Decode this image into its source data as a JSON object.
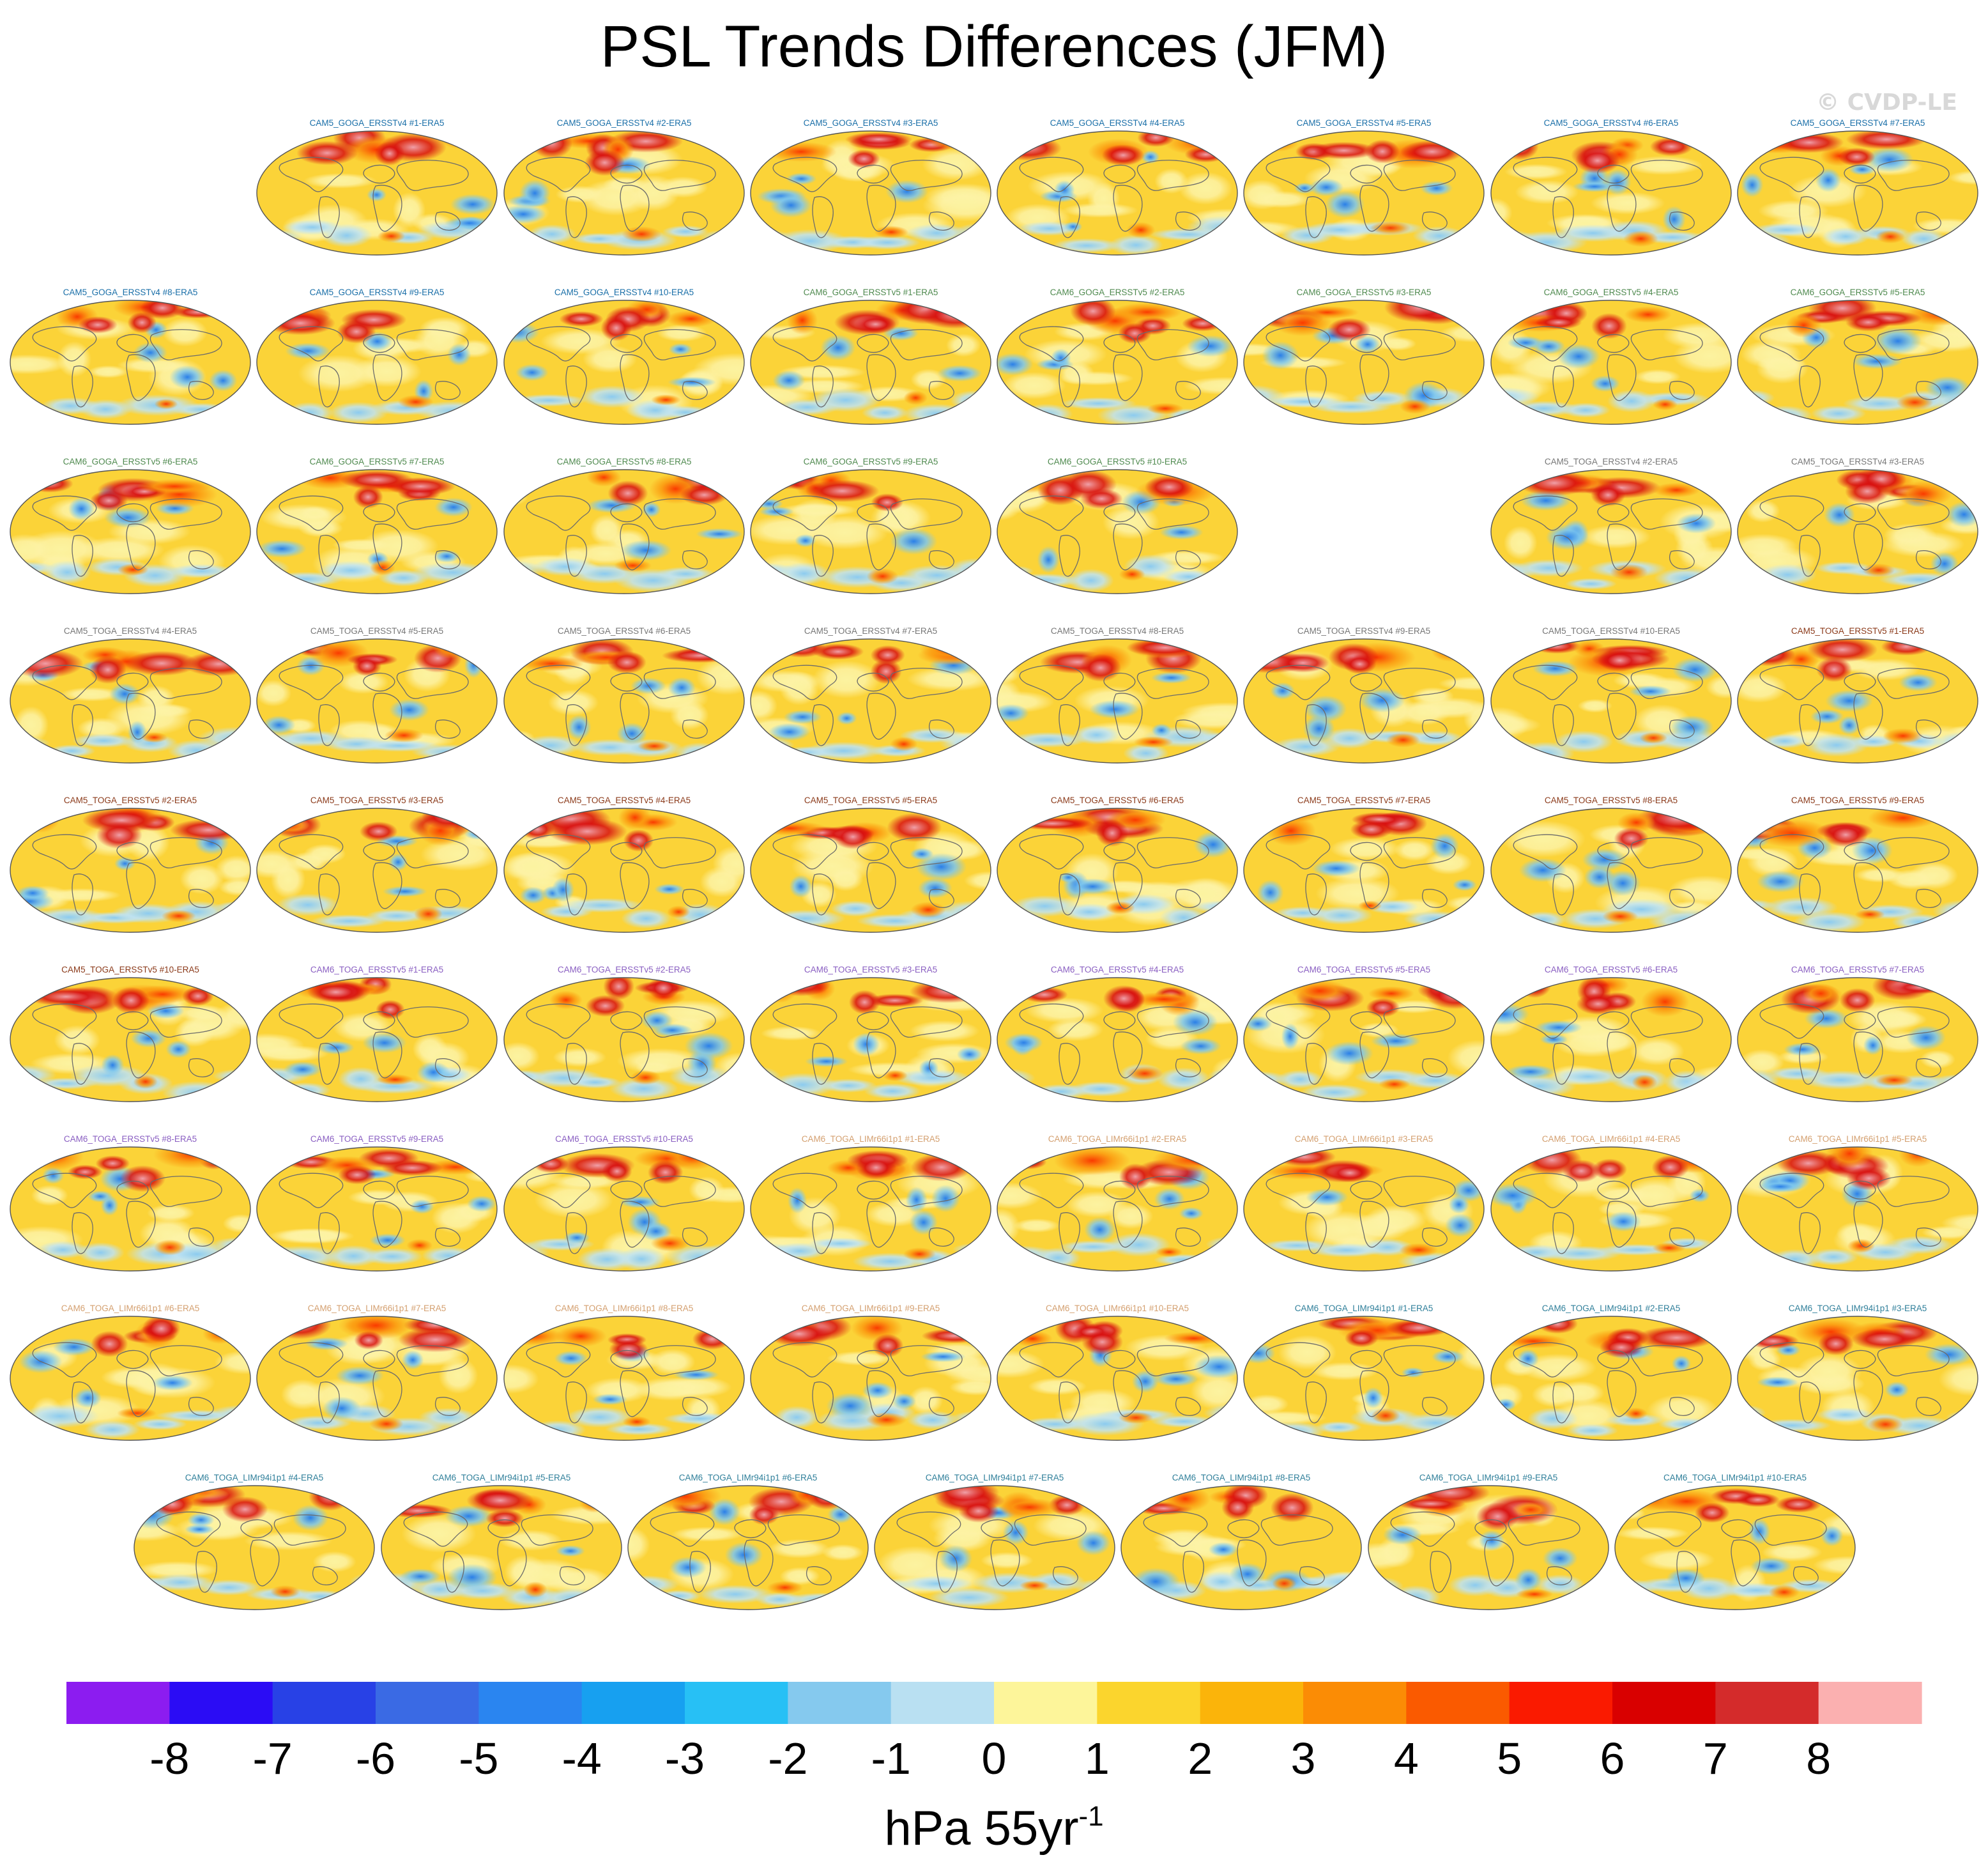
{
  "figure": {
    "title": "PSL Trends Differences (JFM)",
    "watermark": "© CVDP-LE"
  },
  "colors": {
    "group_label_colors": {
      "CAM5_GOGA_ERSSTv4": "#1a6fa8",
      "CAM6_GOGA_ERSSTv5": "#4f8a4f",
      "CAM5_TOGA_ERSSTv4": "#777777",
      "CAM5_TOGA_ERSSTv5": "#8b3a1a",
      "CAM6_TOGA_ERSSTv5": "#8a5fc2",
      "CAM6_TOGA_LIMr66i1p1": "#d4a070",
      "CAM6_TOGA_LIMr94i1p1": "#2f7f9a"
    }
  },
  "chart_data": {
    "type": "heatmap",
    "panel_kind": "global map (Robinson-like projection)",
    "variable": "PSL trend difference",
    "season": "JFM",
    "panels": [
      {
        "label": "CAM5_GOGA_ERSSTv4 #1-ERA5",
        "group": "CAM5_GOGA_ERSSTv4"
      },
      {
        "label": "CAM5_GOGA_ERSSTv4 #2-ERA5",
        "group": "CAM5_GOGA_ERSSTv4"
      },
      {
        "label": "CAM5_GOGA_ERSSTv4 #3-ERA5",
        "group": "CAM5_GOGA_ERSSTv4"
      },
      {
        "label": "CAM5_GOGA_ERSSTv4 #4-ERA5",
        "group": "CAM5_GOGA_ERSSTv4"
      },
      {
        "label": "CAM5_GOGA_ERSSTv4 #5-ERA5",
        "group": "CAM5_GOGA_ERSSTv4"
      },
      {
        "label": "CAM5_GOGA_ERSSTv4 #6-ERA5",
        "group": "CAM5_GOGA_ERSSTv4"
      },
      {
        "label": "CAM5_GOGA_ERSSTv4 #7-ERA5",
        "group": "CAM5_GOGA_ERSSTv4"
      },
      {
        "label": "CAM5_GOGA_ERSSTv4 #8-ERA5",
        "group": "CAM5_GOGA_ERSSTv4"
      },
      {
        "label": "CAM5_GOGA_ERSSTv4 #9-ERA5",
        "group": "CAM5_GOGA_ERSSTv4"
      },
      {
        "label": "CAM5_GOGA_ERSSTv4 #10-ERA5",
        "group": "CAM5_GOGA_ERSSTv4"
      },
      {
        "label": "CAM6_GOGA_ERSSTv5 #1-ERA5",
        "group": "CAM6_GOGA_ERSSTv5"
      },
      {
        "label": "CAM6_GOGA_ERSSTv5 #2-ERA5",
        "group": "CAM6_GOGA_ERSSTv5"
      },
      {
        "label": "CAM6_GOGA_ERSSTv5 #3-ERA5",
        "group": "CAM6_GOGA_ERSSTv5"
      },
      {
        "label": "CAM6_GOGA_ERSSTv5 #4-ERA5",
        "group": "CAM6_GOGA_ERSSTv5"
      },
      {
        "label": "CAM6_GOGA_ERSSTv5 #5-ERA5",
        "group": "CAM6_GOGA_ERSSTv5"
      },
      {
        "label": "CAM6_GOGA_ERSSTv5 #6-ERA5",
        "group": "CAM6_GOGA_ERSSTv5"
      },
      {
        "label": "CAM6_GOGA_ERSSTv5 #7-ERA5",
        "group": "CAM6_GOGA_ERSSTv5"
      },
      {
        "label": "CAM6_GOGA_ERSSTv5 #8-ERA5",
        "group": "CAM6_GOGA_ERSSTv5"
      },
      {
        "label": "CAM6_GOGA_ERSSTv5 #9-ERA5",
        "group": "CAM6_GOGA_ERSSTv5"
      },
      {
        "label": "CAM6_GOGA_ERSSTv5 #10-ERA5",
        "group": "CAM6_GOGA_ERSSTv5"
      },
      {
        "label": "CAM5_TOGA_ERSSTv4 #2-ERA5",
        "group": "CAM5_TOGA_ERSSTv4"
      },
      {
        "label": "CAM5_TOGA_ERSSTv4 #3-ERA5",
        "group": "CAM5_TOGA_ERSSTv4"
      },
      {
        "label": "CAM5_TOGA_ERSSTv4 #4-ERA5",
        "group": "CAM5_TOGA_ERSSTv4"
      },
      {
        "label": "CAM5_TOGA_ERSSTv4 #5-ERA5",
        "group": "CAM5_TOGA_ERSSTv4"
      },
      {
        "label": "CAM5_TOGA_ERSSTv4 #6-ERA5",
        "group": "CAM5_TOGA_ERSSTv4"
      },
      {
        "label": "CAM5_TOGA_ERSSTv4 #7-ERA5",
        "group": "CAM5_TOGA_ERSSTv4"
      },
      {
        "label": "CAM5_TOGA_ERSSTv4 #8-ERA5",
        "group": "CAM5_TOGA_ERSSTv4"
      },
      {
        "label": "CAM5_TOGA_ERSSTv4 #9-ERA5",
        "group": "CAM5_TOGA_ERSSTv4"
      },
      {
        "label": "CAM5_TOGA_ERSSTv4 #10-ERA5",
        "group": "CAM5_TOGA_ERSSTv4"
      },
      {
        "label": "CAM5_TOGA_ERSSTv5 #1-ERA5",
        "group": "CAM5_TOGA_ERSSTv5"
      },
      {
        "label": "CAM5_TOGA_ERSSTv5 #2-ERA5",
        "group": "CAM5_TOGA_ERSSTv5"
      },
      {
        "label": "CAM5_TOGA_ERSSTv5 #3-ERA5",
        "group": "CAM5_TOGA_ERSSTv5"
      },
      {
        "label": "CAM5_TOGA_ERSSTv5 #4-ERA5",
        "group": "CAM5_TOGA_ERSSTv5"
      },
      {
        "label": "CAM5_TOGA_ERSSTv5 #5-ERA5",
        "group": "CAM5_TOGA_ERSSTv5"
      },
      {
        "label": "CAM5_TOGA_ERSSTv5 #6-ERA5",
        "group": "CAM5_TOGA_ERSSTv5"
      },
      {
        "label": "CAM5_TOGA_ERSSTv5 #7-ERA5",
        "group": "CAM5_TOGA_ERSSTv5"
      },
      {
        "label": "CAM5_TOGA_ERSSTv5 #8-ERA5",
        "group": "CAM5_TOGA_ERSSTv5"
      },
      {
        "label": "CAM5_TOGA_ERSSTv5 #9-ERA5",
        "group": "CAM5_TOGA_ERSSTv5"
      },
      {
        "label": "CAM5_TOGA_ERSSTv5 #10-ERA5",
        "group": "CAM5_TOGA_ERSSTv5"
      },
      {
        "label": "CAM6_TOGA_ERSSTv5 #1-ERA5",
        "group": "CAM6_TOGA_ERSSTv5"
      },
      {
        "label": "CAM6_TOGA_ERSSTv5 #2-ERA5",
        "group": "CAM6_TOGA_ERSSTv5"
      },
      {
        "label": "CAM6_TOGA_ERSSTv5 #3-ERA5",
        "group": "CAM6_TOGA_ERSSTv5"
      },
      {
        "label": "CAM6_TOGA_ERSSTv5 #4-ERA5",
        "group": "CAM6_TOGA_ERSSTv5"
      },
      {
        "label": "CAM6_TOGA_ERSSTv5 #5-ERA5",
        "group": "CAM6_TOGA_ERSSTv5"
      },
      {
        "label": "CAM6_TOGA_ERSSTv5 #6-ERA5",
        "group": "CAM6_TOGA_ERSSTv5"
      },
      {
        "label": "CAM6_TOGA_ERSSTv5 #7-ERA5",
        "group": "CAM6_TOGA_ERSSTv5"
      },
      {
        "label": "CAM6_TOGA_ERSSTv5 #8-ERA5",
        "group": "CAM6_TOGA_ERSSTv5"
      },
      {
        "label": "CAM6_TOGA_ERSSTv5 #9-ERA5",
        "group": "CAM6_TOGA_ERSSTv5"
      },
      {
        "label": "CAM6_TOGA_ERSSTv5 #10-ERA5",
        "group": "CAM6_TOGA_ERSSTv5"
      },
      {
        "label": "CAM6_TOGA_LIMr66i1p1 #1-ERA5",
        "group": "CAM6_TOGA_LIMr66i1p1"
      },
      {
        "label": "CAM6_TOGA_LIMr66i1p1 #2-ERA5",
        "group": "CAM6_TOGA_LIMr66i1p1"
      },
      {
        "label": "CAM6_TOGA_LIMr66i1p1 #3-ERA5",
        "group": "CAM6_TOGA_LIMr66i1p1"
      },
      {
        "label": "CAM6_TOGA_LIMr66i1p1 #4-ERA5",
        "group": "CAM6_TOGA_LIMr66i1p1"
      },
      {
        "label": "CAM6_TOGA_LIMr66i1p1 #5-ERA5",
        "group": "CAM6_TOGA_LIMr66i1p1"
      },
      {
        "label": "CAM6_TOGA_LIMr66i1p1 #6-ERA5",
        "group": "CAM6_TOGA_LIMr66i1p1"
      },
      {
        "label": "CAM6_TOGA_LIMr66i1p1 #7-ERA5",
        "group": "CAM6_TOGA_LIMr66i1p1"
      },
      {
        "label": "CAM6_TOGA_LIMr66i1p1 #8-ERA5",
        "group": "CAM6_TOGA_LIMr66i1p1"
      },
      {
        "label": "CAM6_TOGA_LIMr66i1p1 #9-ERA5",
        "group": "CAM6_TOGA_LIMr66i1p1"
      },
      {
        "label": "CAM6_TOGA_LIMr66i1p1 #10-ERA5",
        "group": "CAM6_TOGA_LIMr66i1p1"
      },
      {
        "label": "CAM6_TOGA_LIMr94i1p1 #1-ERA5",
        "group": "CAM6_TOGA_LIMr94i1p1"
      },
      {
        "label": "CAM6_TOGA_LIMr94i1p1 #2-ERA5",
        "group": "CAM6_TOGA_LIMr94i1p1"
      },
      {
        "label": "CAM6_TOGA_LIMr94i1p1 #3-ERA5",
        "group": "CAM6_TOGA_LIMr94i1p1"
      },
      {
        "label": "CAM6_TOGA_LIMr94i1p1 #4-ERA5",
        "group": "CAM6_TOGA_LIMr94i1p1"
      },
      {
        "label": "CAM6_TOGA_LIMr94i1p1 #5-ERA5",
        "group": "CAM6_TOGA_LIMr94i1p1"
      },
      {
        "label": "CAM6_TOGA_LIMr94i1p1 #6-ERA5",
        "group": "CAM6_TOGA_LIMr94i1p1"
      },
      {
        "label": "CAM6_TOGA_LIMr94i1p1 #7-ERA5",
        "group": "CAM6_TOGA_LIMr94i1p1"
      },
      {
        "label": "CAM6_TOGA_LIMr94i1p1 #8-ERA5",
        "group": "CAM6_TOGA_LIMr94i1p1"
      },
      {
        "label": "CAM6_TOGA_LIMr94i1p1 #9-ERA5",
        "group": "CAM6_TOGA_LIMr94i1p1"
      },
      {
        "label": "CAM6_TOGA_LIMr94i1p1 #10-ERA5",
        "group": "CAM6_TOGA_LIMr94i1p1"
      }
    ],
    "colorbar": {
      "units": "hPa 55yr",
      "units_exponent": "-1",
      "tick_labels": [
        "-8",
        "-7",
        "-6",
        "-5",
        "-4",
        "-3",
        "-2",
        "-1",
        "0",
        "1",
        "2",
        "3",
        "4",
        "5",
        "6",
        "7",
        "8"
      ],
      "range": [
        -9,
        9
      ],
      "colors": [
        "#8c1cf0",
        "#2b0cf5",
        "#2841e6",
        "#3a6ae4",
        "#2a85f0",
        "#17a0f0",
        "#27c0f5",
        "#85c9ee",
        "#b9e0f2",
        "#fdf59a",
        "#fbd52d",
        "#fbb40a",
        "#fb8c05",
        "#fa5a00",
        "#fa1a00",
        "#d90000",
        "#d42b2b",
        "#fbb0b0"
      ]
    }
  }
}
